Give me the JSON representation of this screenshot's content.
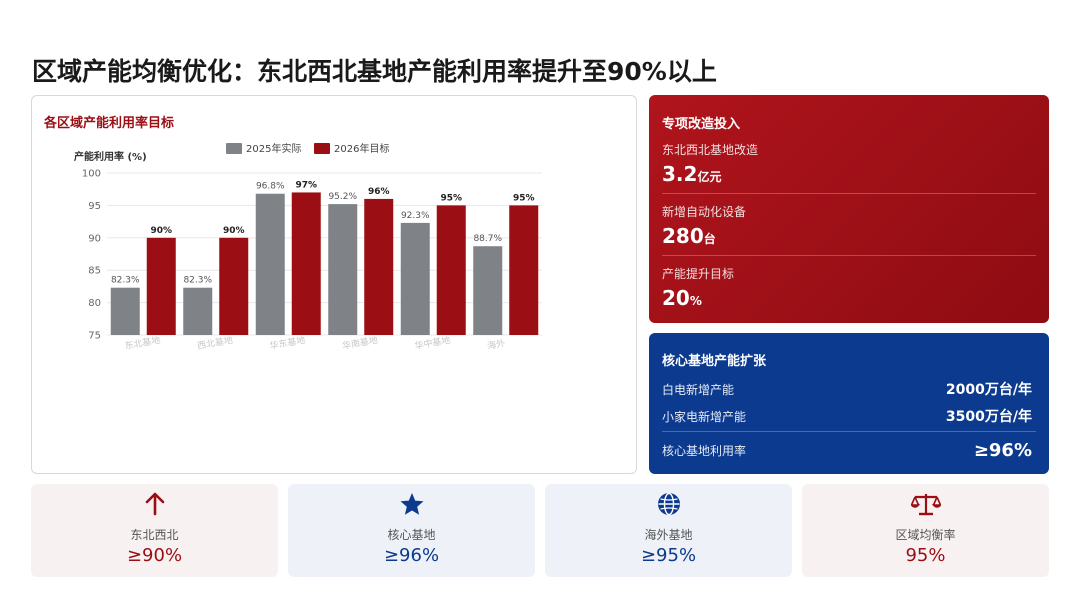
{
  "page": {
    "title": "区域产能均衡优化：东北西北基地产能利用率提升至90%以上"
  },
  "chart_card": {
    "title": "各区域产能利用率目标"
  },
  "chart_data": {
    "type": "bar",
    "ylabel": "产能利用率 (%)",
    "ylim": [
      75,
      100
    ],
    "yticks": [
      75,
      80,
      85,
      90,
      95,
      100
    ],
    "categories": [
      "东北基地",
      "西北基地",
      "华东基地",
      "华南基地",
      "华中基地",
      "海外"
    ],
    "series": [
      {
        "name": "2025年实际",
        "color": "#7f8388",
        "values": [
          82.3,
          82.3,
          96.8,
          95.2,
          92.3,
          88.7
        ],
        "labels": [
          "82.3%",
          "82.3%",
          "96.8%",
          "95.2%",
          "92.3%",
          "88.7%"
        ]
      },
      {
        "name": "2026年目标",
        "color": "#9b0e14",
        "values": [
          90,
          90,
          97,
          96,
          95,
          95
        ],
        "labels": [
          "90%",
          "90%",
          "97%",
          "96%",
          "95%",
          "95%"
        ]
      }
    ],
    "grid": true,
    "legend": "top"
  },
  "investment": {
    "title": "专项改造投入",
    "items": [
      {
        "label": "东北西北基地改造",
        "value": "3.2",
        "unit": "亿元"
      },
      {
        "label": "新增自动化设备",
        "value": "280",
        "unit": "台"
      },
      {
        "label": "产能提升目标",
        "value": "20",
        "unit": "%"
      }
    ],
    "color": "#a5121a"
  },
  "expansion": {
    "title": "核心基地产能扩张",
    "rows": [
      {
        "label": "白电新增产能",
        "value": "2000万台/年"
      },
      {
        "label": "小家电新增产能",
        "value": "3500万台/年"
      },
      {
        "label": "核心基地利用率",
        "value": "≥96%"
      }
    ],
    "color": "#0b3a8e"
  },
  "kpis": [
    {
      "icon": "arrow-up-icon",
      "label": "东北西北",
      "value": "≥90%",
      "color": "#9b0e14",
      "bg": "#f8f1f1"
    },
    {
      "icon": "star-icon",
      "label": "核心基地",
      "value": "≥96%",
      "color": "#0b3a8e",
      "bg": "#eef2f8"
    },
    {
      "icon": "globe-icon",
      "label": "海外基地",
      "value": "≥95%",
      "color": "#0b3a8e",
      "bg": "#eef2f8"
    },
    {
      "icon": "balance-scale-icon",
      "label": "区域均衡率",
      "value": "95%",
      "color": "#9b0e14",
      "bg": "#f8f1f1"
    }
  ]
}
